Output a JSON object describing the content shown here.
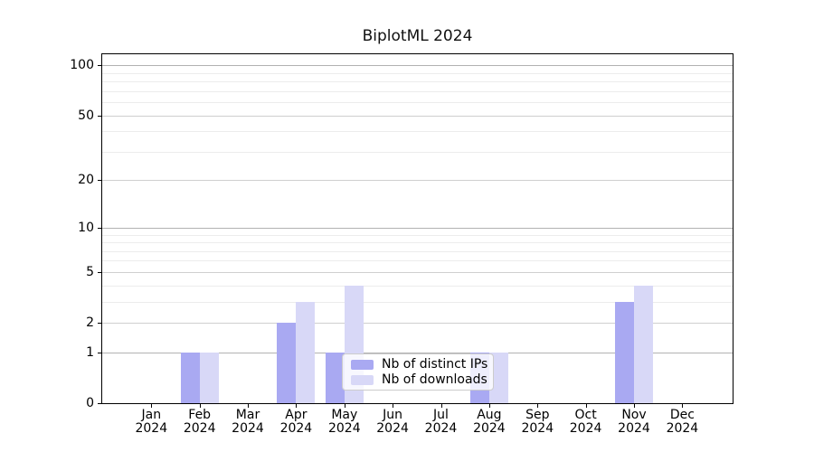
{
  "chart_data": {
    "type": "bar",
    "title": "BiplotML 2024",
    "categories": [
      "Jan",
      "Feb",
      "Mar",
      "Apr",
      "May",
      "Jun",
      "Jul",
      "Aug",
      "Sep",
      "Oct",
      "Nov",
      "Dec"
    ],
    "year": "2024",
    "series": [
      {
        "name": "Nb of distinct IPs",
        "color": "#a9a9f2",
        "values": [
          0,
          1,
          0,
          2,
          1,
          0,
          0,
          1,
          0,
          0,
          3,
          0
        ]
      },
      {
        "name": "Nb of downloads",
        "color": "#d8d8f7",
        "values": [
          0,
          1,
          0,
          3,
          4,
          0,
          0,
          1,
          0,
          0,
          4,
          0
        ]
      }
    ],
    "xlabel": "",
    "ylabel": "",
    "yscale": "log1p",
    "ylim": [
      0,
      115
    ],
    "y_major_ticks": [
      0,
      1,
      2,
      5,
      10,
      20,
      50,
      100
    ],
    "y_minor_gridlines": [
      3,
      4,
      6,
      7,
      8,
      9,
      30,
      40,
      60,
      70,
      80,
      90
    ],
    "grid": true,
    "legend_position": "lower center-right"
  },
  "colors": {
    "background": "#ffffff",
    "spine": "#000000",
    "grid_decade": "#b2b2b2",
    "grid_major": "#cfcfcf",
    "grid_minor": "#ececec",
    "legend_border": "#cccccc"
  }
}
